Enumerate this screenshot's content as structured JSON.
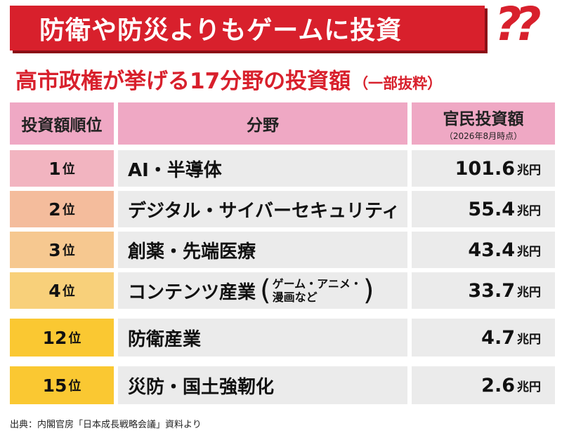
{
  "banner": {
    "text": "防衛や防災よりもゲームに投資",
    "marks": "??"
  },
  "subtitle": {
    "main": "高市政権が挙げる17分野の投資額",
    "note": "（一部抜粋）"
  },
  "colors": {
    "banner_red": "#d8202c",
    "header_pink": "#efa8c4",
    "rank_1": "#f2b4c0",
    "rank_2": "#f4bc9c",
    "rank_3": "#f6c890",
    "rank_4": "#f8d07a",
    "rank_12": "#fac832",
    "rank_15": "#fac832",
    "cell_gray": "#ebebeb"
  },
  "chart_data": {
    "type": "table",
    "title": "高市政権が挙げる17分野の投資額",
    "columns": {
      "rank": "投資額順位",
      "field": "分野",
      "amount": "官民投資額",
      "amount_note": "（2026年8月時点）"
    },
    "rank_unit": "位",
    "amount_unit": "兆円",
    "rows": [
      {
        "rank": "1",
        "field": "AI・半導体",
        "amount": "101.6"
      },
      {
        "rank": "2",
        "field": "デジタル・サイバーセキュリティ",
        "amount": "55.4"
      },
      {
        "rank": "3",
        "field": "創薬・先端医療",
        "amount": "43.4"
      },
      {
        "rank": "4",
        "field": "コンテンツ産業",
        "field_note_1": "ゲーム・アニメ・",
        "field_note_2": "漫画など",
        "amount": "33.7"
      },
      {
        "rank": "12",
        "field": "防衛産業",
        "amount": "4.7"
      },
      {
        "rank": "15",
        "field": "災防・国土強靭化",
        "amount": "2.6"
      }
    ]
  },
  "footnote": "出典：内閣官房「日本成長戦略会議」資料より"
}
